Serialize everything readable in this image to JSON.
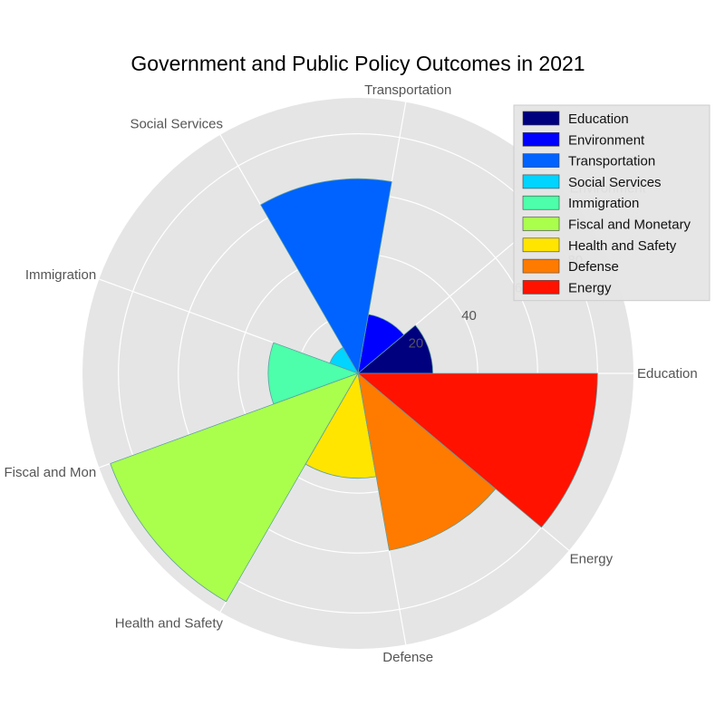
{
  "chart_data": {
    "type": "polar-bar",
    "title": "Government and Public Policy Outcomes in 2021",
    "categories": [
      "Education",
      "Environment",
      "Transportation",
      "Social Services",
      "Immigration",
      "Fiscal and Monetary",
      "Health and Safety",
      "Defense",
      "Energy"
    ],
    "category_labels": [
      "Education",
      "Environment",
      "Transportation",
      "Social Services",
      "Immigration",
      "Fiscal and Mon",
      "Health and Safety",
      "Defense",
      "Energy"
    ],
    "values": [
      25,
      20,
      65,
      10,
      30,
      88,
      35,
      60,
      80
    ],
    "colors": [
      "#00007f",
      "#0000ff",
      "#0063ff",
      "#00d4ff",
      "#4dffaa",
      "#aaff4d",
      "#ffe500",
      "#ff7b00",
      "#ff1300"
    ],
    "radial_ticks": [
      20,
      40,
      60,
      80
    ],
    "rlim": [
      0,
      92
    ],
    "grid": true,
    "legend": {
      "position": "top-right",
      "entries": [
        "Education",
        "Environment",
        "Transportation",
        "Social Services",
        "Immigration",
        "Fiscal and Monetary",
        "Health and Safety",
        "Defense",
        "Energy"
      ]
    }
  }
}
